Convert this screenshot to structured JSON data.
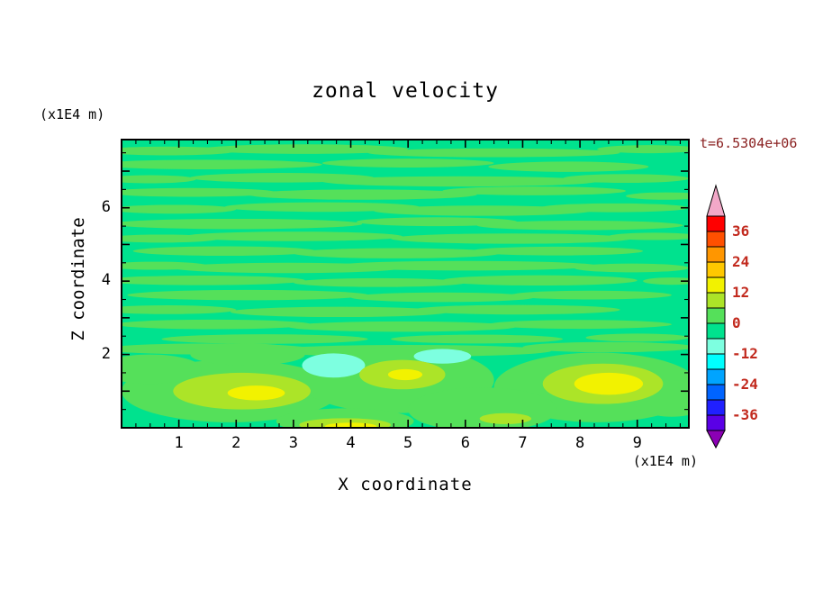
{
  "figure": {
    "title": "zonal velocity",
    "timestamp": "t=6.5304e+06",
    "timestamp_color": "#8B2222",
    "background": "#FFFFFF"
  },
  "axes": {
    "x": {
      "title": "X coordinate",
      "unit": "(x1E4 m)",
      "tick_labels": [
        "1",
        "2",
        "3",
        "4",
        "5",
        "6",
        "7",
        "8",
        "9"
      ],
      "tick_values": [
        1,
        2,
        3,
        4,
        5,
        6,
        7,
        8,
        9
      ],
      "min": 0,
      "max": 9.9
    },
    "z": {
      "title": "Z coordinate",
      "unit": "(x1E4 m)",
      "tick_labels": [
        "2",
        "4",
        "6"
      ],
      "tick_values": [
        2,
        4,
        6
      ],
      "min": 0,
      "max": 7.86
    }
  },
  "colorbar": {
    "tick_labels": [
      "36",
      "24",
      "12",
      "0",
      "-12",
      "-24",
      "-36"
    ],
    "tick_values": [
      36,
      24,
      12,
      0,
      -12,
      -24,
      -36
    ],
    "levels": [
      -42,
      -36,
      -30,
      -24,
      -18,
      -12,
      -6,
      0,
      6,
      12,
      18,
      24,
      30,
      36,
      42
    ],
    "colors": [
      "#5A00E6",
      "#2020FF",
      "#0064FF",
      "#00A4FF",
      "#00FFFF",
      "#7DFFE0",
      "#00E28E",
      "#55E05A",
      "#ACE428",
      "#F2F200",
      "#FFC800",
      "#FF9600",
      "#FF5000",
      "#FF0000"
    ],
    "under_color": "#8B00B4",
    "over_color": "#F2A8C8",
    "label_color": "#C22A1E"
  },
  "chart_data": {
    "type": "heatmap",
    "title": "zonal velocity",
    "xlabel": "X coordinate (x1E4 m)",
    "ylabel": "Z coordinate (x1E4 m)",
    "xlim": [
      0,
      9.9
    ],
    "ylim": [
      0,
      7.86
    ],
    "contour_interval": 6,
    "value_range_shown": [
      -42,
      42
    ],
    "background_value": -3,
    "features": [
      {
        "value": 3,
        "note": "green bands, 0 to 6",
        "ellipses": [
          [
            0.8,
            7.55,
            1.2,
            0.12
          ],
          [
            3.2,
            7.6,
            1.8,
            0.13
          ],
          [
            6.5,
            7.5,
            2.2,
            0.12
          ],
          [
            9.2,
            7.6,
            0.9,
            0.11
          ],
          [
            1.5,
            7.18,
            2.0,
            0.13
          ],
          [
            5.0,
            7.22,
            1.5,
            0.12
          ],
          [
            7.8,
            7.12,
            1.4,
            0.14
          ],
          [
            0.5,
            6.78,
            0.8,
            0.11
          ],
          [
            2.8,
            6.82,
            1.6,
            0.13
          ],
          [
            5.9,
            6.72,
            2.4,
            0.14
          ],
          [
            8.8,
            6.8,
            1.1,
            0.12
          ],
          [
            1.2,
            6.42,
            1.5,
            0.12
          ],
          [
            4.2,
            6.36,
            2.0,
            0.14
          ],
          [
            7.2,
            6.46,
            1.6,
            0.12
          ],
          [
            9.5,
            6.32,
            0.7,
            0.1
          ],
          [
            0.9,
            5.96,
            1.1,
            0.12
          ],
          [
            3.5,
            6.02,
            1.7,
            0.13
          ],
          [
            6.3,
            5.92,
            1.9,
            0.14
          ],
          [
            8.6,
            6.0,
            1.3,
            0.12
          ],
          [
            2.0,
            5.56,
            2.2,
            0.14
          ],
          [
            5.5,
            5.62,
            1.4,
            0.12
          ],
          [
            8.0,
            5.52,
            1.8,
            0.13
          ],
          [
            0.7,
            5.16,
            1.0,
            0.11
          ],
          [
            3.0,
            5.22,
            1.9,
            0.13
          ],
          [
            6.8,
            5.16,
            2.1,
            0.14
          ],
          [
            9.3,
            5.22,
            0.8,
            0.1
          ],
          [
            1.8,
            4.82,
            1.6,
            0.13
          ],
          [
            4.8,
            4.76,
            1.8,
            0.14
          ],
          [
            7.6,
            4.82,
            1.5,
            0.12
          ],
          [
            0.6,
            4.42,
            0.9,
            0.11
          ],
          [
            2.9,
            4.36,
            2.0,
            0.14
          ],
          [
            6.0,
            4.42,
            2.3,
            0.13
          ],
          [
            8.9,
            4.36,
            1.0,
            0.12
          ],
          [
            1.4,
            4.02,
            1.8,
            0.13
          ],
          [
            4.5,
            3.96,
            1.5,
            0.12
          ],
          [
            7.3,
            4.02,
            1.7,
            0.14
          ],
          [
            9.6,
            4.0,
            0.5,
            0.1
          ],
          [
            2.2,
            3.62,
            2.1,
            0.14
          ],
          [
            5.6,
            3.56,
            1.6,
            0.13
          ],
          [
            8.2,
            3.62,
            1.4,
            0.12
          ],
          [
            0.8,
            3.22,
            1.2,
            0.12
          ],
          [
            3.8,
            3.16,
            1.9,
            0.14
          ],
          [
            6.9,
            3.22,
            1.8,
            0.13
          ],
          [
            1.6,
            2.82,
            1.7,
            0.13
          ],
          [
            4.9,
            2.76,
            2.0,
            0.14
          ],
          [
            8.0,
            2.82,
            1.6,
            0.12
          ],
          [
            2.5,
            2.42,
            1.8,
            0.13
          ],
          [
            6.2,
            2.42,
            1.5,
            0.12
          ],
          [
            9.0,
            2.46,
            0.9,
            0.11
          ],
          [
            1.5,
            2.15,
            1.8,
            0.15
          ],
          [
            5.0,
            2.1,
            2.5,
            0.16
          ],
          [
            8.5,
            2.2,
            1.5,
            0.14
          ],
          [
            1.9,
            1.0,
            1.9,
            0.85
          ],
          [
            4.8,
            1.3,
            1.7,
            0.9
          ],
          [
            8.3,
            1.1,
            1.8,
            0.95
          ],
          [
            6.3,
            0.5,
            1.3,
            0.6
          ],
          [
            0.5,
            1.6,
            0.9,
            0.4
          ],
          [
            9.6,
            0.8,
            0.7,
            0.5
          ],
          [
            3.9,
            0.18,
            1.2,
            0.35
          ],
          [
            2.2,
            2.0,
            1.0,
            0.3
          ]
        ]
      },
      {
        "value": -9,
        "note": "pale cyan patches, -12 to -6",
        "ellipses": [
          [
            3.7,
            1.7,
            0.55,
            0.33
          ],
          [
            5.6,
            1.95,
            0.5,
            0.2
          ]
        ]
      },
      {
        "value": 9,
        "note": "yellow-green patches, 6 to 12",
        "ellipses": [
          [
            2.1,
            1.0,
            1.2,
            0.5
          ],
          [
            4.9,
            1.45,
            0.75,
            0.4
          ],
          [
            8.4,
            1.2,
            1.05,
            0.55
          ],
          [
            3.9,
            0.08,
            0.8,
            0.18
          ],
          [
            6.7,
            0.25,
            0.45,
            0.15
          ]
        ]
      },
      {
        "value": 15,
        "note": "yellow cores, 12 to 18",
        "ellipses": [
          [
            2.35,
            0.95,
            0.5,
            0.2
          ],
          [
            4.95,
            1.45,
            0.3,
            0.15
          ],
          [
            8.5,
            1.2,
            0.6,
            0.3
          ],
          [
            4.0,
            0.04,
            0.45,
            0.1
          ]
        ]
      }
    ]
  }
}
